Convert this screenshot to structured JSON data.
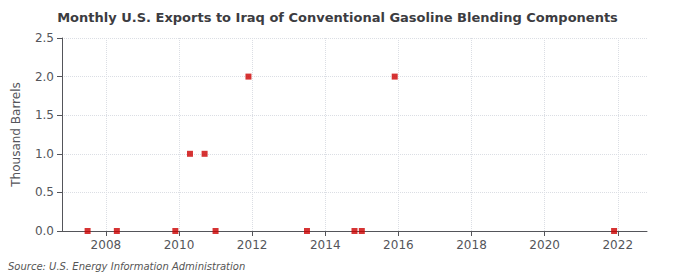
{
  "chart_data": {
    "type": "scatter",
    "title": "Monthly U.S. Exports to Iraq of Conventional Gasoline Blending Components",
    "ylabel": "Thousand Barrels",
    "annotations": [
      "Source: U.S. Energy Information Administration"
    ],
    "x": [
      2007.5,
      2008.3,
      2009.9,
      2010.3,
      2010.7,
      2011.0,
      2011.9,
      2013.5,
      2014.8,
      2015.0,
      2015.9,
      2021.9
    ],
    "values": [
      0.0,
      0.0,
      0.0,
      1.0,
      1.0,
      0.0,
      2.0,
      0.0,
      0.0,
      0.0,
      2.0,
      0.0
    ],
    "color": "#cc0000",
    "marker": "square",
    "xlim": [
      2006.8,
      2022.8
    ],
    "xticks": [
      2008,
      2010,
      2012,
      2014,
      2016,
      2018,
      2020,
      2022
    ],
    "ylim": [
      0.0,
      2.5
    ],
    "yticks": [
      {
        "value": 0.0,
        "label": "0.0"
      },
      0.5,
      {
        "value": 1.0,
        "label": "1.0"
      },
      1.5,
      {
        "value": 2.0,
        "label": "2.0"
      },
      2.5
    ],
    "grid": true
  }
}
